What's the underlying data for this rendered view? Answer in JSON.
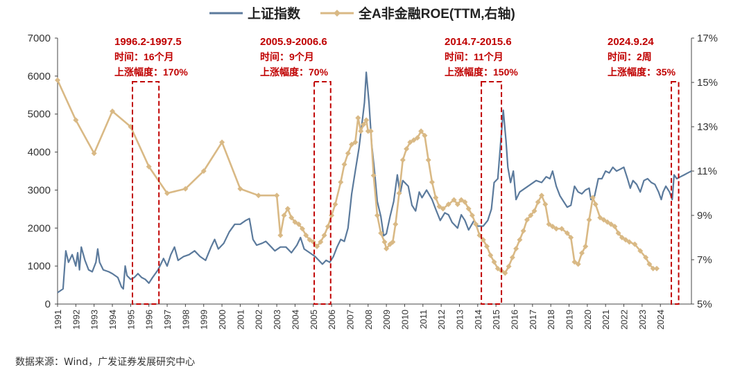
{
  "chart_data": {
    "type": "line",
    "legend": {
      "position": "top",
      "entries": [
        {
          "name": "上证指数",
          "color": "#5b7a9c"
        },
        {
          "name": "全A非金融ROE(TTM,右轴)",
          "color": "#d9b985"
        }
      ]
    },
    "x_ticks": [
      "1991",
      "1992",
      "1993",
      "1994",
      "1995",
      "1996",
      "1997",
      "1998",
      "1999",
      "2000",
      "2001",
      "2002",
      "2003",
      "2004",
      "2005",
      "2006",
      "2007",
      "2008",
      "2009",
      "2010",
      "2011",
      "2012",
      "2013",
      "2014",
      "2015",
      "2016",
      "2017",
      "2018",
      "2019",
      "2020",
      "2021",
      "2022",
      "2023",
      "2024"
    ],
    "x_range": [
      1991,
      2025.7
    ],
    "y_left": {
      "range": [
        0,
        7000
      ],
      "ticks": [
        "0",
        "1000",
        "2000",
        "3000",
        "4000",
        "5000",
        "6000",
        "7000"
      ]
    },
    "y_right": {
      "range": [
        5,
        17
      ],
      "ticks": [
        "5%",
        "7%",
        "9%",
        "11%",
        "13%",
        "15%",
        "17%"
      ]
    },
    "series": [
      {
        "name": "上证指数",
        "axis": "left",
        "color": "#5b7a9c",
        "points": [
          [
            1991.0,
            300
          ],
          [
            1991.3,
            400
          ],
          [
            1991.45,
            1400
          ],
          [
            1991.6,
            1100
          ],
          [
            1991.8,
            1300
          ],
          [
            1992.0,
            1000
          ],
          [
            1992.1,
            1350
          ],
          [
            1992.2,
            900
          ],
          [
            1992.3,
            1500
          ],
          [
            1992.5,
            1150
          ],
          [
            1992.7,
            900
          ],
          [
            1992.9,
            850
          ],
          [
            1993.1,
            1100
          ],
          [
            1993.2,
            1450
          ],
          [
            1993.3,
            1100
          ],
          [
            1993.5,
            900
          ],
          [
            1993.8,
            850
          ],
          [
            1994.0,
            800
          ],
          [
            1994.3,
            700
          ],
          [
            1994.5,
            450
          ],
          [
            1994.6,
            400
          ],
          [
            1994.7,
            1000
          ],
          [
            1994.8,
            750
          ],
          [
            1995.0,
            650
          ],
          [
            1995.2,
            700
          ],
          [
            1995.4,
            800
          ],
          [
            1995.6,
            700
          ],
          [
            1995.8,
            650
          ],
          [
            1996.0,
            550
          ],
          [
            1996.2,
            700
          ],
          [
            1996.5,
            900
          ],
          [
            1996.8,
            1200
          ],
          [
            1997.0,
            1000
          ],
          [
            1997.2,
            1300
          ],
          [
            1997.4,
            1500
          ],
          [
            1997.6,
            1150
          ],
          [
            1997.9,
            1250
          ],
          [
            1998.2,
            1300
          ],
          [
            1998.5,
            1400
          ],
          [
            1998.8,
            1250
          ],
          [
            1999.1,
            1150
          ],
          [
            1999.4,
            1500
          ],
          [
            1999.6,
            1700
          ],
          [
            1999.8,
            1450
          ],
          [
            2000.1,
            1600
          ],
          [
            2000.4,
            1900
          ],
          [
            2000.7,
            2100
          ],
          [
            2001.0,
            2100
          ],
          [
            2001.3,
            2200
          ],
          [
            2001.5,
            2250
          ],
          [
            2001.7,
            1700
          ],
          [
            2001.9,
            1550
          ],
          [
            2002.2,
            1600
          ],
          [
            2002.4,
            1650
          ],
          [
            2002.7,
            1500
          ],
          [
            2002.9,
            1400
          ],
          [
            2003.2,
            1500
          ],
          [
            2003.5,
            1500
          ],
          [
            2003.8,
            1350
          ],
          [
            2004.1,
            1550
          ],
          [
            2004.3,
            1750
          ],
          [
            2004.5,
            1450
          ],
          [
            2004.8,
            1350
          ],
          [
            2005.1,
            1250
          ],
          [
            2005.3,
            1150
          ],
          [
            2005.5,
            1050
          ],
          [
            2005.7,
            1150
          ],
          [
            2005.9,
            1100
          ],
          [
            2006.1,
            1250
          ],
          [
            2006.3,
            1500
          ],
          [
            2006.5,
            1700
          ],
          [
            2006.7,
            1650
          ],
          [
            2006.9,
            2000
          ],
          [
            2007.1,
            2900
          ],
          [
            2007.3,
            3500
          ],
          [
            2007.5,
            4100
          ],
          [
            2007.7,
            4900
          ],
          [
            2007.8,
            5300
          ],
          [
            2007.9,
            6100
          ],
          [
            2008.05,
            5300
          ],
          [
            2008.2,
            4200
          ],
          [
            2008.35,
            3500
          ],
          [
            2008.5,
            2700
          ],
          [
            2008.7,
            2300
          ],
          [
            2008.85,
            1800
          ],
          [
            2009.0,
            1850
          ],
          [
            2009.2,
            2300
          ],
          [
            2009.4,
            2700
          ],
          [
            2009.6,
            3400
          ],
          [
            2009.75,
            2900
          ],
          [
            2009.9,
            3250
          ],
          [
            2010.2,
            3100
          ],
          [
            2010.4,
            2600
          ],
          [
            2010.6,
            2450
          ],
          [
            2010.8,
            2950
          ],
          [
            2010.95,
            2800
          ],
          [
            2011.2,
            3000
          ],
          [
            2011.5,
            2750
          ],
          [
            2011.7,
            2500
          ],
          [
            2011.95,
            2200
          ],
          [
            2012.2,
            2400
          ],
          [
            2012.4,
            2350
          ],
          [
            2012.6,
            2150
          ],
          [
            2012.9,
            2000
          ],
          [
            2013.1,
            2350
          ],
          [
            2013.3,
            2200
          ],
          [
            2013.5,
            1950
          ],
          [
            2013.8,
            2200
          ],
          [
            2014.0,
            2050
          ],
          [
            2014.3,
            2050
          ],
          [
            2014.55,
            2200
          ],
          [
            2014.75,
            2500
          ],
          [
            2014.9,
            3200
          ],
          [
            2015.1,
            3300
          ],
          [
            2015.25,
            4200
          ],
          [
            2015.4,
            5100
          ],
          [
            2015.55,
            4300
          ],
          [
            2015.65,
            3600
          ],
          [
            2015.8,
            3200
          ],
          [
            2015.95,
            3500
          ],
          [
            2016.1,
            2750
          ],
          [
            2016.3,
            2950
          ],
          [
            2016.6,
            3050
          ],
          [
            2016.9,
            3150
          ],
          [
            2017.2,
            3250
          ],
          [
            2017.5,
            3200
          ],
          [
            2017.75,
            3350
          ],
          [
            2017.95,
            3300
          ],
          [
            2018.1,
            3500
          ],
          [
            2018.3,
            3100
          ],
          [
            2018.5,
            2850
          ],
          [
            2018.7,
            2700
          ],
          [
            2018.9,
            2550
          ],
          [
            2019.1,
            2600
          ],
          [
            2019.3,
            3100
          ],
          [
            2019.5,
            2950
          ],
          [
            2019.7,
            2900
          ],
          [
            2019.9,
            3000
          ],
          [
            2020.1,
            3050
          ],
          [
            2020.2,
            2750
          ],
          [
            2020.4,
            2850
          ],
          [
            2020.6,
            3300
          ],
          [
            2020.8,
            3300
          ],
          [
            2021.0,
            3500
          ],
          [
            2021.2,
            3450
          ],
          [
            2021.4,
            3600
          ],
          [
            2021.6,
            3500
          ],
          [
            2021.8,
            3550
          ],
          [
            2022.0,
            3600
          ],
          [
            2022.2,
            3300
          ],
          [
            2022.35,
            3050
          ],
          [
            2022.5,
            3250
          ],
          [
            2022.7,
            3150
          ],
          [
            2022.9,
            2950
          ],
          [
            2023.1,
            3250
          ],
          [
            2023.3,
            3300
          ],
          [
            2023.5,
            3200
          ],
          [
            2023.7,
            3150
          ],
          [
            2023.9,
            2950
          ],
          [
            2024.05,
            2750
          ],
          [
            2024.15,
            2950
          ],
          [
            2024.3,
            3100
          ],
          [
            2024.5,
            2950
          ],
          [
            2024.65,
            2750
          ],
          [
            2024.75,
            3400
          ],
          [
            2024.9,
            3300
          ],
          [
            2025.1,
            3350
          ],
          [
            2025.3,
            3400
          ],
          [
            2025.5,
            3450
          ],
          [
            2025.7,
            3500
          ]
        ]
      },
      {
        "name": "全A非金融ROE(TTM,右轴)",
        "axis": "right",
        "color": "#d9b985",
        "points": [
          [
            1991.0,
            15.1
          ],
          [
            1992.0,
            13.3
          ],
          [
            1993.0,
            11.8
          ],
          [
            1994.0,
            13.7
          ],
          [
            1995.0,
            13.0
          ],
          [
            1996.0,
            11.2
          ],
          [
            1997.0,
            10.0
          ],
          [
            1998.0,
            10.2
          ],
          [
            1999.0,
            11.0
          ],
          [
            2000.0,
            12.3
          ],
          [
            2001.0,
            10.2
          ],
          [
            2002.0,
            9.9
          ],
          [
            2003.0,
            9.9
          ],
          [
            2003.2,
            8.1
          ],
          [
            2003.4,
            9.0
          ],
          [
            2003.6,
            9.3
          ],
          [
            2003.8,
            8.9
          ],
          [
            2004.0,
            8.7
          ],
          [
            2004.2,
            8.6
          ],
          [
            2004.4,
            8.4
          ],
          [
            2004.6,
            8.1
          ],
          [
            2004.8,
            7.9
          ],
          [
            2005.0,
            7.8
          ],
          [
            2005.2,
            7.6
          ],
          [
            2005.4,
            7.8
          ],
          [
            2005.6,
            8.1
          ],
          [
            2005.8,
            8.5
          ],
          [
            2006.0,
            9.0
          ],
          [
            2006.2,
            9.5
          ],
          [
            2006.5,
            10.5
          ],
          [
            2006.7,
            11.3
          ],
          [
            2006.9,
            11.8
          ],
          [
            2007.1,
            12.2
          ],
          [
            2007.3,
            12.3
          ],
          [
            2007.45,
            13.4
          ],
          [
            2007.6,
            12.8
          ],
          [
            2007.75,
            13.1
          ],
          [
            2007.9,
            13.3
          ],
          [
            2008.0,
            12.8
          ],
          [
            2008.15,
            12.8
          ],
          [
            2008.3,
            10.8
          ],
          [
            2008.5,
            9.0
          ],
          [
            2008.7,
            8.2
          ],
          [
            2008.9,
            7.8
          ],
          [
            2009.0,
            7.5
          ],
          [
            2009.2,
            7.7
          ],
          [
            2009.35,
            7.8
          ],
          [
            2009.5,
            8.6
          ],
          [
            2009.7,
            10.0
          ],
          [
            2009.9,
            11.5
          ],
          [
            2010.1,
            12.0
          ],
          [
            2010.3,
            12.3
          ],
          [
            2010.5,
            12.4
          ],
          [
            2010.7,
            12.5
          ],
          [
            2010.9,
            12.8
          ],
          [
            2011.1,
            12.6
          ],
          [
            2011.3,
            11.5
          ],
          [
            2011.5,
            10.5
          ],
          [
            2011.7,
            9.8
          ],
          [
            2011.9,
            9.4
          ],
          [
            2012.1,
            9.3
          ],
          [
            2012.4,
            9.5
          ],
          [
            2012.7,
            9.7
          ],
          [
            2012.9,
            9.5
          ],
          [
            2013.1,
            9.7
          ],
          [
            2013.3,
            9.6
          ],
          [
            2013.5,
            9.3
          ],
          [
            2013.7,
            9.0
          ],
          [
            2013.9,
            8.6
          ],
          [
            2014.1,
            8.1
          ],
          [
            2014.3,
            7.9
          ],
          [
            2014.5,
            7.6
          ],
          [
            2014.7,
            7.2
          ],
          [
            2014.9,
            6.9
          ],
          [
            2015.1,
            6.6
          ],
          [
            2015.3,
            6.5
          ],
          [
            2015.5,
            6.4
          ],
          [
            2015.7,
            6.7
          ],
          [
            2015.9,
            7.1
          ],
          [
            2016.1,
            7.5
          ],
          [
            2016.3,
            7.9
          ],
          [
            2016.5,
            8.3
          ],
          [
            2016.7,
            8.8
          ],
          [
            2016.9,
            9.0
          ],
          [
            2017.1,
            9.2
          ],
          [
            2017.3,
            9.6
          ],
          [
            2017.5,
            9.9
          ],
          [
            2017.7,
            9.5
          ],
          [
            2017.9,
            8.6
          ],
          [
            2018.1,
            8.5
          ],
          [
            2018.3,
            8.4
          ],
          [
            2018.6,
            8.4
          ],
          [
            2018.9,
            8.2
          ],
          [
            2019.1,
            8.0
          ],
          [
            2019.3,
            6.9
          ],
          [
            2019.5,
            6.8
          ],
          [
            2019.7,
            7.3
          ],
          [
            2019.9,
            7.6
          ],
          [
            2020.1,
            8.8
          ],
          [
            2020.3,
            9.8
          ],
          [
            2020.45,
            9.5
          ],
          [
            2020.7,
            8.9
          ],
          [
            2020.9,
            8.8
          ],
          [
            2021.1,
            8.7
          ],
          [
            2021.3,
            8.6
          ],
          [
            2021.5,
            8.5
          ],
          [
            2021.7,
            8.2
          ],
          [
            2021.9,
            8.0
          ],
          [
            2022.1,
            7.9
          ],
          [
            2022.3,
            7.8
          ],
          [
            2022.6,
            7.7
          ],
          [
            2022.9,
            7.4
          ],
          [
            2023.2,
            7.1
          ],
          [
            2023.4,
            6.8
          ],
          [
            2023.6,
            6.6
          ],
          [
            2023.8,
            6.6
          ]
        ]
      }
    ],
    "annotations": [
      {
        "title": "1996.2-1997.5",
        "duration": "时间：16个月",
        "gain": "上涨幅度：170%",
        "x_start": 1995.1,
        "x_end": 1996.55
      },
      {
        "title": "2005.9-2006.6",
        "duration": "时间：9个月",
        "gain": "上涨幅度：70%",
        "x_start": 2005.05,
        "x_end": 2005.95
      },
      {
        "title": "2014.7-2015.6",
        "duration": "时间：11个月",
        "gain": "上涨幅度：150%",
        "x_start": 2014.2,
        "x_end": 2015.3
      },
      {
        "title": "2024.9.24",
        "duration": "时间：2周",
        "gain": "上涨幅度：35%",
        "x_start": 2024.6,
        "x_end": 2025.0
      }
    ]
  },
  "source": "数据来源：Wind，广发证券发展研究中心"
}
